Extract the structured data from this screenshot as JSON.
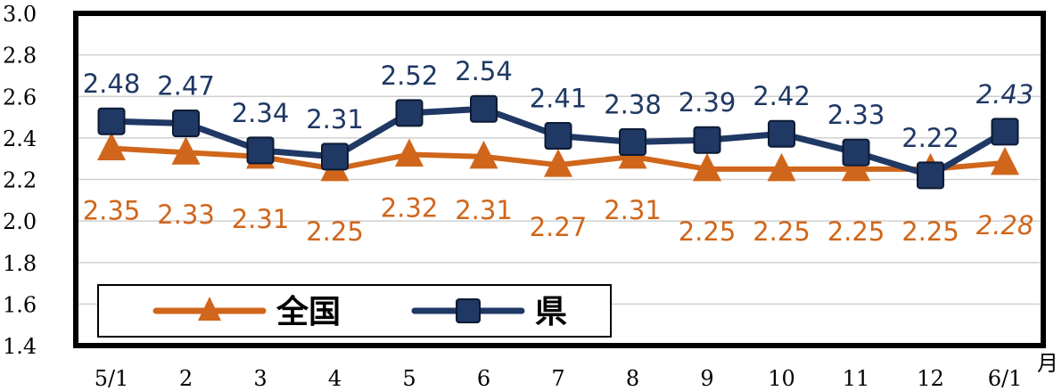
{
  "chart_data": {
    "type": "line",
    "categories": [
      "5/1",
      "2",
      "3",
      "4",
      "5",
      "6",
      "7",
      "8",
      "9",
      "10",
      "11",
      "12",
      "6/1"
    ],
    "x_unit": "月",
    "ylim": [
      1.4,
      3.0
    ],
    "y_ticks": [
      "3.0",
      "2.8",
      "2.6",
      "2.4",
      "2.2",
      "2.0",
      "1.8",
      "1.6",
      "1.4"
    ],
    "grid": true,
    "legend_position": "bottom-left",
    "series": [
      {
        "name": "全国",
        "color": "#D0661B",
        "marker": "triangle",
        "values": [
          2.35,
          2.33,
          2.31,
          2.25,
          2.32,
          2.31,
          2.27,
          2.31,
          2.25,
          2.25,
          2.25,
          2.25,
          2.28
        ],
        "labels": [
          "2.35",
          "2.33",
          "2.31",
          "2.25",
          "2.32",
          "2.31",
          "2.27",
          "2.31",
          "2.25",
          "2.25",
          "2.25",
          "2.25",
          "2.28"
        ]
      },
      {
        "name": "県",
        "color": "#1F3864",
        "marker": "square",
        "values": [
          2.48,
          2.47,
          2.34,
          2.31,
          2.52,
          2.54,
          2.41,
          2.38,
          2.39,
          2.42,
          2.33,
          2.22,
          2.43
        ],
        "labels": [
          "2.48",
          "2.47",
          "2.34",
          "2.31",
          "2.52",
          "2.54",
          "2.41",
          "2.38",
          "2.39",
          "2.42",
          "2.33",
          "2.22",
          "2.43"
        ]
      }
    ]
  }
}
